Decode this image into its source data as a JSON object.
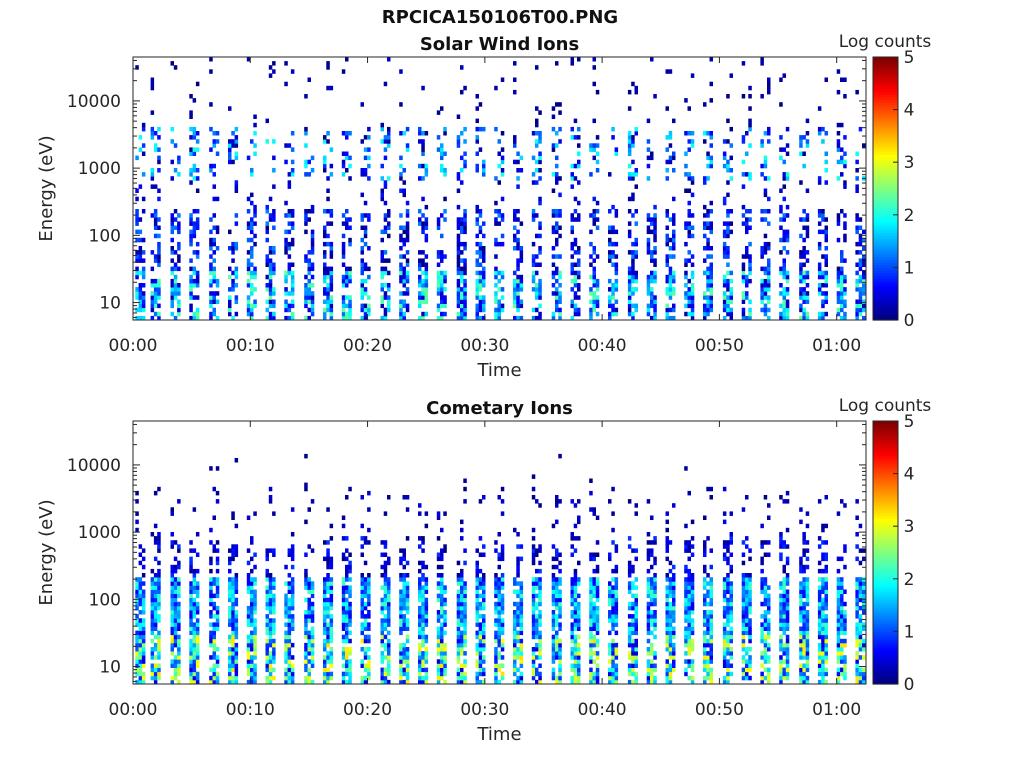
{
  "figure": {
    "title": "RPCICA150106T00.PNG"
  },
  "colorbar": {
    "label": "Log counts",
    "min": 0,
    "max": 5,
    "ticks": [
      "0",
      "1",
      "2",
      "3",
      "4",
      "5"
    ],
    "colormap": "jet"
  },
  "chart_data": [
    {
      "type": "heatmap",
      "title": "Solar Wind Ions",
      "xlabel": "Time",
      "ylabel": "Energy (eV)",
      "x_ticks": [
        "00:00",
        "00:10",
        "00:20",
        "00:30",
        "00:40",
        "00:50",
        "01:00"
      ],
      "y_ticks": [
        "10",
        "100",
        "1000",
        "10000"
      ],
      "y_scale": "log",
      "ylim": [
        5.5,
        45000
      ],
      "xlim_minutes": [
        0,
        62.5
      ],
      "z_label": "Log counts",
      "zlim": [
        0,
        5
      ],
      "sweep_times_min": [
        0.2,
        1.5,
        3.2,
        4.8,
        6.5,
        8.1,
        9.7,
        11.3,
        12.9,
        14.6,
        16.2,
        17.8,
        19.4,
        21.1,
        22.7,
        24.3,
        25.9,
        27.6,
        29.2,
        30.8,
        32.4,
        34.0,
        35.7,
        37.3,
        38.9,
        40.5,
        42.2,
        43.8,
        45.4,
        47.0,
        48.6,
        50.3,
        51.9,
        53.5,
        55.1,
        56.8,
        58.4,
        60.0,
        61.6
      ],
      "note_values": "sweeps with log counts 0–2.2 at 10–300 eV and 1000–4000 eV"
    },
    {
      "type": "heatmap",
      "title": "Cometary Ions",
      "xlabel": "Time",
      "ylabel": "Energy (eV)",
      "x_ticks": [
        "00:00",
        "00:10",
        "00:20",
        "00:30",
        "00:40",
        "00:50",
        "01:00"
      ],
      "y_ticks": [
        "10",
        "100",
        "1000",
        "10000"
      ],
      "y_scale": "log",
      "ylim": [
        5.5,
        45000
      ],
      "xlim_minutes": [
        0,
        62.5
      ],
      "z_label": "Log counts",
      "zlim": [
        0,
        5
      ],
      "sweep_times_min": [
        0.2,
        1.5,
        3.2,
        4.8,
        6.5,
        8.1,
        9.7,
        11.3,
        12.9,
        14.6,
        16.2,
        17.8,
        19.4,
        21.1,
        22.7,
        24.3,
        25.9,
        27.6,
        29.2,
        30.8,
        32.4,
        34.0,
        35.7,
        37.3,
        38.9,
        40.5,
        42.2,
        43.8,
        45.4,
        47.0,
        48.6,
        50.3,
        51.9,
        53.5,
        55.1,
        56.8,
        58.4,
        60.0,
        61.6
      ],
      "note_values": "peak log counts ~3.2 at 10–30 eV, 1–2 at 30–200 eV"
    }
  ]
}
